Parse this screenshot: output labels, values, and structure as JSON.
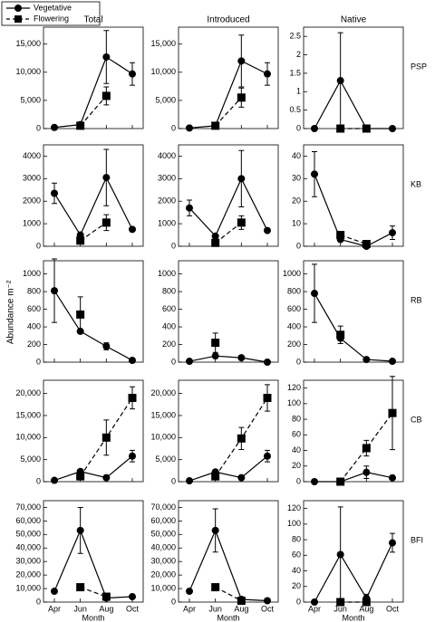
{
  "ylabel": "Abundance m⁻²",
  "chart_data": [
    {
      "type": "line",
      "title": "Total",
      "categories": [
        "Apr",
        "Jun",
        "Aug",
        "Oct"
      ],
      "ylim": [
        0,
        18000
      ],
      "yticks": [
        0,
        {
          "value": 5000,
          "label": "5,000"
        },
        {
          "value": 10000,
          "label": "10,000"
        },
        {
          "value": 15000,
          "label": "15,000"
        }
      ],
      "series": [
        {
          "name": "Vegetative",
          "color": "#000000",
          "values": [
            200,
            700,
            12700,
            9700
          ],
          "errors": [
            null,
            null,
            4700,
            2000
          ]
        },
        {
          "name": "Flowering",
          "color": "#000000",
          "values": [
            null,
            500,
            5800,
            null
          ],
          "errors": [
            null,
            null,
            1600,
            null
          ]
        }
      ]
    },
    {
      "type": "line",
      "title": "Introduced",
      "categories": [
        "Apr",
        "Jun",
        "Aug",
        "Oct"
      ],
      "ylim": [
        0,
        18000
      ],
      "yticks": [
        0,
        {
          "value": 5000,
          "label": "5,000"
        },
        {
          "value": 10000,
          "label": "10,000"
        },
        {
          "value": 15000,
          "label": "15,000"
        }
      ],
      "series": [
        {
          "name": "Vegetative",
          "color": "#000000",
          "values": [
            100,
            500,
            12000,
            9700
          ],
          "errors": [
            null,
            null,
            4600,
            2000
          ]
        },
        {
          "name": "Flowering",
          "color": "#000000",
          "values": [
            null,
            500,
            5500,
            null
          ],
          "errors": [
            null,
            null,
            1700,
            null
          ]
        }
      ]
    },
    {
      "type": "line",
      "title": "Native",
      "row_label": "PSP",
      "categories": [
        "Apr",
        "Jun",
        "Aug",
        "Oct"
      ],
      "ylim": [
        0,
        2.75
      ],
      "yticks": [
        0,
        0.5,
        1,
        1.5,
        2,
        2.5
      ],
      "series": [
        {
          "name": "Vegetative",
          "color": "#000000",
          "values": [
            0,
            1.3,
            0,
            0
          ],
          "errors": [
            null,
            1.3,
            null,
            null
          ]
        },
        {
          "name": "Flowering",
          "color": "#000000",
          "values": [
            null,
            0,
            0,
            null
          ],
          "errors": [
            null,
            null,
            null,
            null
          ]
        }
      ]
    },
    {
      "type": "line",
      "categories": [
        "Apr",
        "Jun",
        "Aug",
        "Oct"
      ],
      "ylim": [
        0,
        4500
      ],
      "yticks": [
        0,
        1000,
        2000,
        3000,
        4000
      ],
      "series": [
        {
          "name": "Vegetative",
          "color": "#000000",
          "values": [
            2350,
            500,
            3050,
            750
          ],
          "errors": [
            450,
            null,
            1250,
            null
          ]
        },
        {
          "name": "Flowering",
          "color": "#000000",
          "values": [
            null,
            250,
            1050,
            null
          ],
          "errors": [
            null,
            null,
            350,
            null
          ]
        }
      ]
    },
    {
      "type": "line",
      "categories": [
        "Apr",
        "Jun",
        "Aug",
        "Oct"
      ],
      "ylim": [
        0,
        4500
      ],
      "yticks": [
        0,
        1000,
        2000,
        3000,
        4000
      ],
      "series": [
        {
          "name": "Vegetative",
          "color": "#000000",
          "values": [
            1700,
            450,
            3000,
            700
          ],
          "errors": [
            350,
            null,
            1250,
            null
          ]
        },
        {
          "name": "Flowering",
          "color": "#000000",
          "values": [
            null,
            150,
            1050,
            null
          ],
          "errors": [
            null,
            null,
            300,
            null
          ]
        }
      ]
    },
    {
      "type": "line",
      "row_label": "KB",
      "categories": [
        "Apr",
        "Jun",
        "Aug",
        "Oct"
      ],
      "ylim": [
        0,
        45
      ],
      "yticks": [
        0,
        10,
        20,
        30,
        40
      ],
      "series": [
        {
          "name": "Vegetative",
          "color": "#000000",
          "values": [
            32,
            3,
            0,
            6
          ],
          "errors": [
            10,
            null,
            null,
            3
          ]
        },
        {
          "name": "Flowering",
          "color": "#000000",
          "values": [
            null,
            5,
            1,
            null
          ],
          "errors": [
            null,
            null,
            null,
            null
          ]
        }
      ]
    },
    {
      "type": "line",
      "categories": [
        "Apr",
        "Jun",
        "Aug",
        "Oct"
      ],
      "ylim": [
        0,
        1150
      ],
      "yticks": [
        0,
        200,
        400,
        600,
        800,
        1000
      ],
      "series": [
        {
          "name": "Vegetative",
          "color": "#000000",
          "values": [
            810,
            350,
            180,
            20
          ],
          "errors": [
            360,
            null,
            40,
            null
          ]
        },
        {
          "name": "Flowering",
          "color": "#000000",
          "values": [
            null,
            540,
            null,
            null
          ],
          "errors": [
            null,
            200,
            null,
            null
          ]
        }
      ]
    },
    {
      "type": "line",
      "categories": [
        "Apr",
        "Jun",
        "Aug",
        "Oct"
      ],
      "ylim": [
        0,
        1150
      ],
      "yticks": [
        0,
        200,
        400,
        600,
        800,
        1000
      ],
      "series": [
        {
          "name": "Vegetative",
          "color": "#000000",
          "values": [
            10,
            70,
            50,
            0
          ],
          "errors": [
            null,
            null,
            null,
            null
          ]
        },
        {
          "name": "Flowering",
          "color": "#000000",
          "values": [
            null,
            220,
            null,
            null
          ],
          "errors": [
            null,
            110,
            null,
            null
          ]
        }
      ]
    },
    {
      "type": "line",
      "row_label": "RB",
      "categories": [
        "Apr",
        "Jun",
        "Aug",
        "Oct"
      ],
      "ylim": [
        0,
        1150
      ],
      "yticks": [
        0,
        200,
        400,
        600,
        800,
        1000
      ],
      "series": [
        {
          "name": "Vegetative",
          "color": "#000000",
          "values": [
            780,
            270,
            30,
            10
          ],
          "errors": [
            330,
            null,
            null,
            null
          ]
        },
        {
          "name": "Flowering",
          "color": "#000000",
          "values": [
            null,
            310,
            null,
            null
          ],
          "errors": [
            null,
            100,
            null,
            null
          ]
        }
      ]
    },
    {
      "type": "line",
      "categories": [
        "Apr",
        "Jun",
        "Aug",
        "Oct"
      ],
      "ylim": [
        0,
        23000
      ],
      "yticks": [
        0,
        {
          "value": 5000,
          "label": "5,000"
        },
        {
          "value": 10000,
          "label": "10,000"
        },
        {
          "value": 15000,
          "label": "15,000"
        },
        {
          "value": 20000,
          "label": "20,000"
        }
      ],
      "series": [
        {
          "name": "Vegetative",
          "color": "#000000",
          "values": [
            300,
            2300,
            900,
            5800
          ],
          "errors": [
            null,
            500,
            null,
            1300
          ]
        },
        {
          "name": "Flowering",
          "color": "#000000",
          "values": [
            null,
            1200,
            10000,
            19000
          ],
          "errors": [
            null,
            null,
            4000,
            2500
          ]
        }
      ]
    },
    {
      "type": "line",
      "categories": [
        "Apr",
        "Jun",
        "Aug",
        "Oct"
      ],
      "ylim": [
        0,
        23000
      ],
      "yticks": [
        0,
        {
          "value": 5000,
          "label": "5,000"
        },
        {
          "value": 10000,
          "label": "10,000"
        },
        {
          "value": 15000,
          "label": "15,000"
        },
        {
          "value": 20000,
          "label": "20,000"
        }
      ],
      "series": [
        {
          "name": "Vegetative",
          "color": "#000000",
          "values": [
            200,
            2200,
            900,
            5800
          ],
          "errors": [
            null,
            500,
            null,
            1300
          ]
        },
        {
          "name": "Flowering",
          "color": "#000000",
          "values": [
            null,
            1200,
            9800,
            19000
          ],
          "errors": [
            null,
            null,
            2500,
            3000
          ]
        }
      ]
    },
    {
      "type": "line",
      "row_label": "CB",
      "categories": [
        "Apr",
        "Jun",
        "Aug",
        "Oct"
      ],
      "ylim": [
        0,
        130
      ],
      "yticks": [
        0,
        20,
        40,
        60,
        80,
        100,
        120
      ],
      "series": [
        {
          "name": "Vegetative",
          "color": "#000000",
          "values": [
            0,
            0,
            12,
            5
          ],
          "errors": [
            null,
            null,
            8,
            null
          ]
        },
        {
          "name": "Flowering",
          "color": "#000000",
          "values": [
            null,
            0,
            43,
            88
          ],
          "errors": [
            null,
            null,
            10,
            47
          ]
        }
      ]
    },
    {
      "type": "line",
      "xlabel": "Month",
      "categories": [
        "Apr",
        "Jun",
        "Aug",
        "Oct"
      ],
      "ylim": [
        0,
        75000
      ],
      "yticks": [
        0,
        {
          "value": 10000,
          "label": "10,000"
        },
        {
          "value": 20000,
          "label": "20,000"
        },
        {
          "value": 30000,
          "label": "30,000"
        },
        {
          "value": 40000,
          "label": "40,000"
        },
        {
          "value": 50000,
          "label": "50,000"
        },
        {
          "value": 60000,
          "label": "60,000"
        },
        {
          "value": 70000,
          "label": "70,000"
        }
      ],
      "series": [
        {
          "name": "Vegetative",
          "color": "#000000",
          "values": [
            8000,
            53000,
            3000,
            4000
          ],
          "errors": [
            null,
            17000,
            null,
            null
          ]
        },
        {
          "name": "Flowering",
          "color": "#000000",
          "values": [
            null,
            11000,
            4000,
            null
          ],
          "errors": [
            null,
            null,
            null,
            null
          ]
        }
      ]
    },
    {
      "type": "line",
      "xlabel": "Month",
      "categories": [
        "Apr",
        "Jun",
        "Aug",
        "Oct"
      ],
      "ylim": [
        0,
        75000
      ],
      "yticks": [
        0,
        {
          "value": 10000,
          "label": "10,000"
        },
        {
          "value": 20000,
          "label": "20,000"
        },
        {
          "value": 30000,
          "label": "30,000"
        },
        {
          "value": 40000,
          "label": "40,000"
        },
        {
          "value": 50000,
          "label": "50,000"
        },
        {
          "value": 60000,
          "label": "60,000"
        },
        {
          "value": 70000,
          "label": "70,000"
        }
      ],
      "series": [
        {
          "name": "Vegetative",
          "color": "#000000",
          "values": [
            8000,
            53000,
            2000,
            1000
          ],
          "errors": [
            null,
            16000,
            null,
            null
          ]
        },
        {
          "name": "Flowering",
          "color": "#000000",
          "values": [
            null,
            11000,
            1000,
            null
          ],
          "errors": [
            null,
            null,
            null,
            null
          ]
        }
      ]
    },
    {
      "type": "line",
      "row_label": "BFI",
      "xlabel": "Month",
      "categories": [
        "Apr",
        "Jun",
        "Aug",
        "Oct"
      ],
      "ylim": [
        0,
        130
      ],
      "yticks": [
        0,
        20,
        40,
        60,
        80,
        100,
        120
      ],
      "series": [
        {
          "name": "Vegetative",
          "color": "#000000",
          "values": [
            0,
            61,
            5,
            76
          ],
          "errors": [
            null,
            61,
            5,
            12
          ]
        },
        {
          "name": "Flowering",
          "color": "#000000",
          "values": [
            null,
            0,
            0,
            null
          ],
          "errors": [
            null,
            null,
            null,
            null
          ]
        }
      ]
    }
  ]
}
